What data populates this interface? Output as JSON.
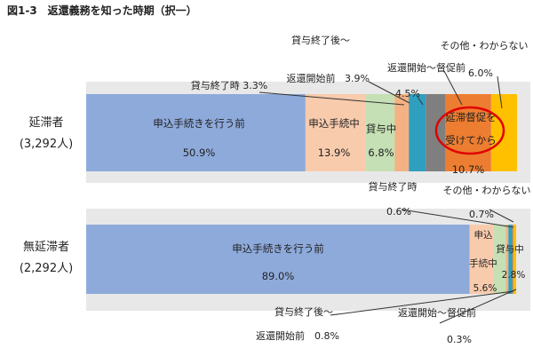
{
  "figure_title": "図1-3　返還義務を知った時期（択一）",
  "colors": {
    "before_application": "#8eaadb",
    "during_application": "#f8cbad",
    "during_loan": "#c5e0b4",
    "end_of_loan": "#f4b183",
    "after_loan_before_repayment": "#2e9fbf",
    "after_repayment_before_dunning": "#7f7f7f",
    "after_dunning": "#ed7d31",
    "other_unknown": "#ffc000",
    "highlight_circle": "#e00000",
    "band": "#e8e8e8",
    "leader": "#333333"
  },
  "chart_data": {
    "type": "bar",
    "orientation": "horizontal-stacked-100",
    "title": "図1-3　返還義務を知った時期（択一）",
    "categories": [
      {
        "name": "延滞者",
        "n": "(3,292人)"
      },
      {
        "name": "無延滞者",
        "n": "(2,292人)"
      }
    ],
    "series": [
      {
        "name": "申込手続きを行う前",
        "values": [
          50.9,
          89.0
        ]
      },
      {
        "name": "申込手続中",
        "values": [
          13.9,
          5.6
        ]
      },
      {
        "name": "貸与中",
        "values": [
          6.8,
          2.8
        ]
      },
      {
        "name": "貸与終了時",
        "values": [
          3.3,
          0.6
        ]
      },
      {
        "name": "貸与終了後～返還開始前",
        "values": [
          3.9,
          0.8
        ]
      },
      {
        "name": "返還開始～督促前",
        "values": [
          4.5,
          0.3
        ]
      },
      {
        "name": "延滞督促を受けてから",
        "values": [
          10.7,
          0.0
        ]
      },
      {
        "name": "その他・わからない",
        "values": [
          6.0,
          0.7
        ]
      }
    ],
    "value_labels": [
      [
        "50.9%",
        "13.9%",
        "6.8%",
        "3.3%",
        "3.9%",
        "4.5%",
        "10.7%",
        "6.0%"
      ],
      [
        "89.0%",
        "5.6%",
        "2.8%",
        "0.6%",
        "0.8%",
        "0.3%",
        "",
        "0.7%"
      ]
    ],
    "segment_labels": {
      "during_loan_short": "貸与中",
      "during_application_split": [
        "申込",
        "手続中"
      ],
      "dunning_split": [
        "延滞督促を",
        "受けてから"
      ],
      "end_of_loan_with_value": "貸与終了時 3.3%",
      "after_loan_line1": "貸与終了後～",
      "after_loan_line2": "返還開始前",
      "after_loan_with_value": "返還開始前　0.8%"
    },
    "xlim": [
      0,
      100
    ],
    "highlighted_segment": "延滞督促を受けてから"
  }
}
